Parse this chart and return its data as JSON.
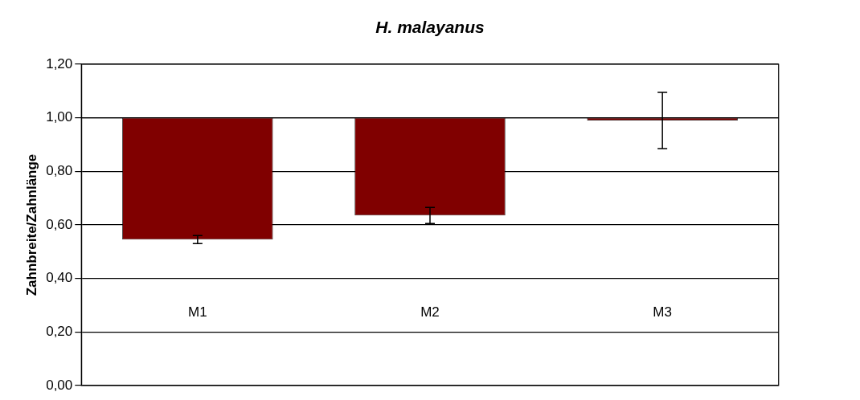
{
  "chart_data": {
    "type": "bar",
    "title": "H. malayanus",
    "ylabel": "Zahnbreite/Zahnlänge",
    "categories": [
      "M1",
      "M2",
      "M3"
    ],
    "base": [
      1,
      1,
      1
    ],
    "values": [
      -0.455,
      -0.365,
      -0.01
    ],
    "errors": [
      0.015,
      0.03,
      0.105
    ],
    "color": "#800000",
    "ylim": [
      0,
      1.2
    ],
    "yticks": [
      {
        "value": 0,
        "label": "0,00"
      },
      {
        "value": 0.2,
        "label": "0,20"
      },
      {
        "value": 0.4,
        "label": "0,40"
      },
      {
        "value": 0.6,
        "label": "0,60"
      },
      {
        "value": 0.8,
        "label": "0,80"
      },
      {
        "value": 1,
        "label": "1,00"
      },
      {
        "value": 1.2,
        "label": "1,20"
      }
    ],
    "grid": "y",
    "legend": false
  }
}
